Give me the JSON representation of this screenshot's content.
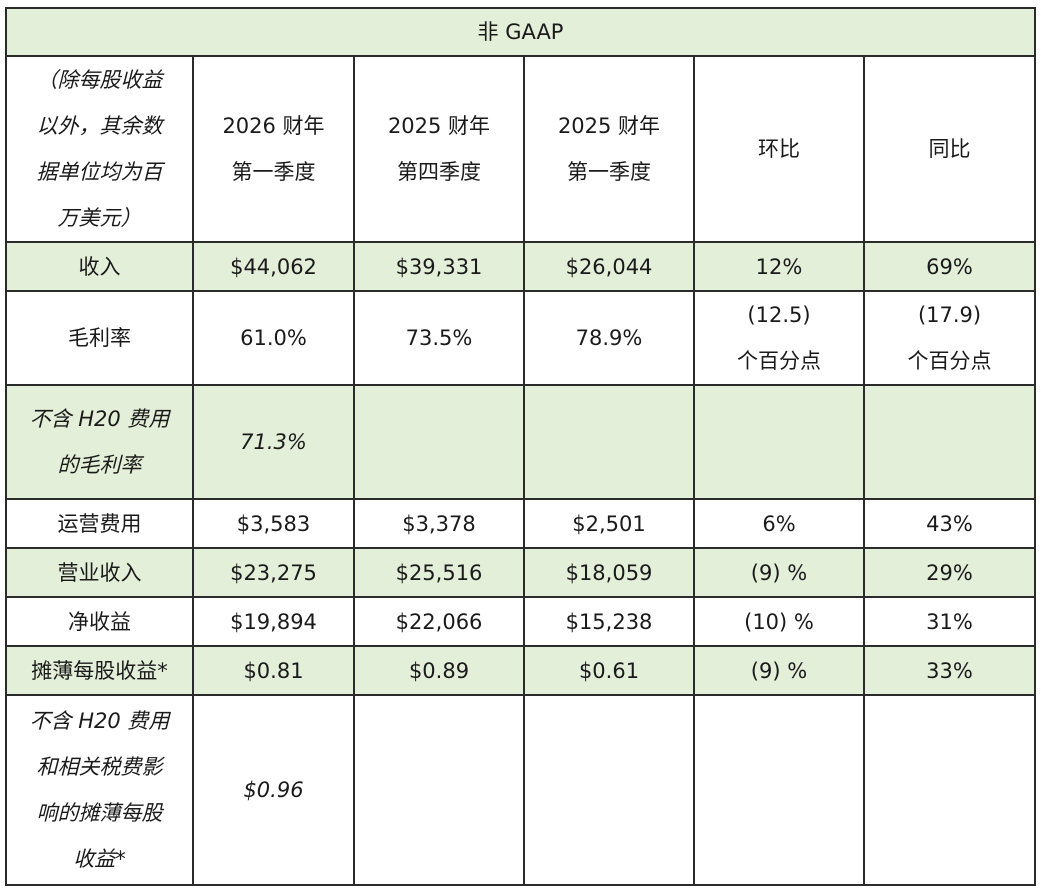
{
  "title": "非 GAAP",
  "corner_header": "（除每股收益以外，其余数据单位均为百万美元）",
  "columns": [
    "2026 财年\n第一季度",
    "2025 财年\n第四季度",
    "2025 财年\n第一季度",
    "环比",
    "同比"
  ],
  "col_labels": {
    "c1_line1": "2026 财年",
    "c1_line2": "第一季度",
    "c2_line1": "2025 财年",
    "c2_line2": "第四季度",
    "c3_line1": "2025 财年",
    "c3_line2": "第一季度",
    "c4": "环比",
    "c5": "同比"
  },
  "rows": {
    "revenue": {
      "label": "收入",
      "v": [
        "$44,062",
        "$39,331",
        "$26,044",
        "12%",
        "69%"
      ]
    },
    "gross_margin": {
      "label": "毛利率",
      "v": [
        "61.0%",
        "73.5%",
        "78.9%",
        "(12.5)\n个百分点",
        "(17.9)\n个百分点"
      ],
      "qoq_l1": "(12.5)",
      "qoq_l2": "个百分点",
      "yoy_l1": "(17.9)",
      "yoy_l2": "个百分点"
    },
    "gm_ex_h20": {
      "label_l1": "不含 H20 费用",
      "label_l2": "的毛利率",
      "v": [
        "71.3%",
        "",
        "",
        "",
        ""
      ]
    },
    "opex": {
      "label": "运营费用",
      "v": [
        "$3,583",
        "$3,378",
        "$2,501",
        "6%",
        "43%"
      ]
    },
    "op_income": {
      "label": "营业收入",
      "v": [
        "$23,275",
        "$25,516",
        "$18,059",
        "(9) %",
        "29%"
      ]
    },
    "net_income": {
      "label": "净收益",
      "v": [
        "$19,894",
        "$22,066",
        "$15,238",
        "(10) %",
        "31%"
      ]
    },
    "eps": {
      "label": "摊薄每股收益*",
      "v": [
        "$0.81",
        "$0.89",
        "$0.61",
        "(9) %",
        "33%"
      ]
    },
    "eps_ex_h20": {
      "label_l1": "不含 H20 费用",
      "label_l2": "和相关税费影",
      "label_l3": "响的摊薄每股",
      "label_l4": "收益*",
      "v": [
        "$0.96",
        "",
        "",
        "",
        ""
      ]
    }
  },
  "corner_lines": [
    "（除每股收益",
    "以外，其余数",
    "据单位均为百",
    "万美元）"
  ],
  "colors": {
    "row_highlight": "#e3efd9",
    "border": "#2b2b2b"
  }
}
